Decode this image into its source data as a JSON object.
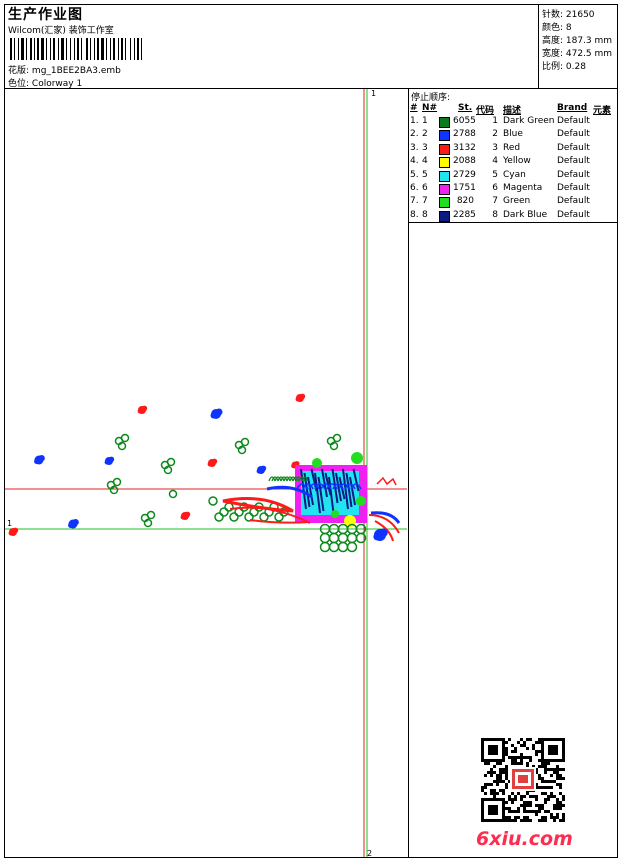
{
  "header": {
    "title": "生产作业图",
    "company": "Wilcom(汇家) 装饰工作室",
    "design_label": "花版:",
    "design_value": "mg_1BEE2BA3.emb",
    "colorway_label": "色位:",
    "colorway_value": "Colorway 1"
  },
  "stats": {
    "stitches": "针数: 21650",
    "colors": "颜色: 8",
    "height": "高度: 187.3 mm",
    "width": "宽度: 472.5 mm",
    "scale": "比例: 0.28"
  },
  "sequence": {
    "title": "停止顺序:",
    "columns": [
      "#",
      "N#",
      "St.",
      "代码",
      "描述",
      "Brand",
      "元素"
    ],
    "rows": [
      {
        "num": "1.",
        "n": "1",
        "color": "#0a7a1a",
        "st": "6055",
        "code": "1",
        "desc": "Dark Green",
        "brand": "Default"
      },
      {
        "num": "2.",
        "n": "2",
        "color": "#1034ff",
        "st": "2788",
        "code": "2",
        "desc": "Blue",
        "brand": "Default"
      },
      {
        "num": "3.",
        "n": "3",
        "color": "#ff1a1a",
        "st": "3132",
        "code": "3",
        "desc": "Red",
        "brand": "Default"
      },
      {
        "num": "4.",
        "n": "4",
        "color": "#ffff00",
        "st": "2088",
        "code": "4",
        "desc": "Yellow",
        "brand": "Default"
      },
      {
        "num": "5.",
        "n": "5",
        "color": "#22e4f0",
        "st": "2729",
        "code": "5",
        "desc": "Cyan",
        "brand": "Default"
      },
      {
        "num": "6.",
        "n": "6",
        "color": "#f020f0",
        "st": "1751",
        "code": "6",
        "desc": "Magenta",
        "brand": "Default"
      },
      {
        "num": "7.",
        "n": "7",
        "color": "#22dd22",
        "st": "820",
        "code": "7",
        "desc": "Green",
        "brand": "Default"
      },
      {
        "num": "8.",
        "n": "8",
        "color": "#0a1a80",
        "st": "2285",
        "code": "8",
        "desc": "Dark Blue",
        "brand": "Default"
      }
    ]
  },
  "design": {
    "marker_top": "1",
    "marker_bottom": "2",
    "marker_left": "1"
  },
  "watermark": "6xiu.com"
}
